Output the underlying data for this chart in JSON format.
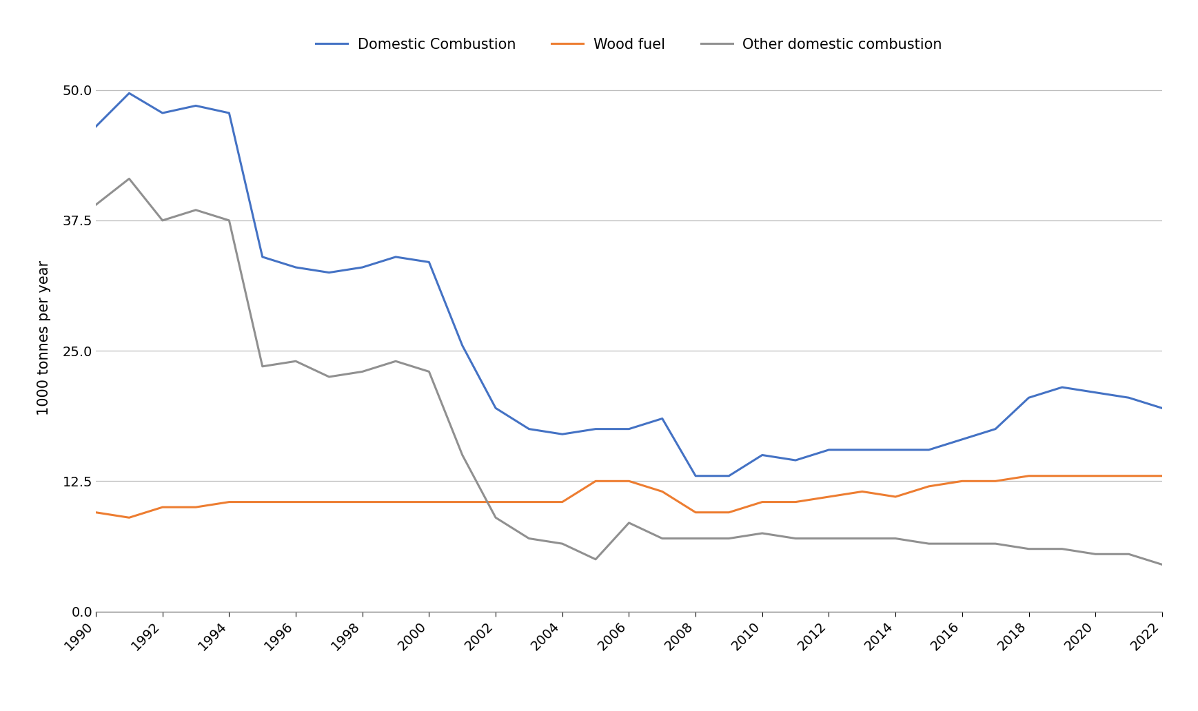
{
  "years": [
    1990,
    1991,
    1992,
    1993,
    1994,
    1995,
    1996,
    1997,
    1998,
    1999,
    2000,
    2001,
    2002,
    2003,
    2004,
    2005,
    2006,
    2007,
    2008,
    2009,
    2010,
    2011,
    2012,
    2013,
    2014,
    2015,
    2016,
    2017,
    2018,
    2019,
    2020,
    2021,
    2022
  ],
  "domestic_combustion": [
    46.5,
    49.7,
    47.8,
    48.5,
    47.8,
    34.0,
    33.0,
    32.5,
    33.0,
    34.0,
    33.5,
    25.5,
    19.5,
    17.5,
    17.0,
    17.5,
    17.5,
    18.5,
    13.0,
    13.0,
    15.0,
    14.5,
    15.5,
    15.5,
    15.5,
    15.5,
    16.5,
    17.5,
    20.5,
    21.5,
    21.0,
    20.5,
    19.5
  ],
  "wood_fuel": [
    9.5,
    9.0,
    10.0,
    10.0,
    10.5,
    10.5,
    10.5,
    10.5,
    10.5,
    10.5,
    10.5,
    10.5,
    10.5,
    10.5,
    10.5,
    12.5,
    12.5,
    11.5,
    9.5,
    9.5,
    10.5,
    10.5,
    11.0,
    11.5,
    11.0,
    12.0,
    12.5,
    12.5,
    13.0,
    13.0,
    13.0,
    13.0,
    13.0
  ],
  "other_domestic_combustion": [
    39.0,
    41.5,
    37.5,
    38.5,
    37.5,
    23.5,
    24.0,
    22.5,
    23.0,
    24.0,
    23.0,
    15.0,
    9.0,
    7.0,
    6.5,
    5.0,
    8.5,
    7.0,
    7.0,
    7.0,
    7.5,
    7.0,
    7.0,
    7.0,
    7.0,
    6.5,
    6.5,
    6.5,
    6.0,
    6.0,
    5.5,
    5.5,
    4.5
  ],
  "domestic_color": "#4472C4",
  "wood_color": "#ED7D31",
  "other_color": "#909090",
  "ylabel": "1000 tonnes per year",
  "ylim": [
    0.0,
    52.5
  ],
  "yticks": [
    0.0,
    12.5,
    25.0,
    37.5,
    50.0
  ],
  "xticks": [
    1990,
    1992,
    1994,
    1996,
    1998,
    2000,
    2002,
    2004,
    2006,
    2008,
    2010,
    2012,
    2014,
    2016,
    2018,
    2020,
    2022
  ],
  "legend_labels": [
    "Domestic Combustion",
    "Wood fuel",
    "Other domestic combustion"
  ],
  "grid_color": "#BBBBBB",
  "line_width": 2.2,
  "background_color": "#FFFFFF",
  "fig_width": 17.38,
  "fig_height": 10.32,
  "dpi": 100
}
